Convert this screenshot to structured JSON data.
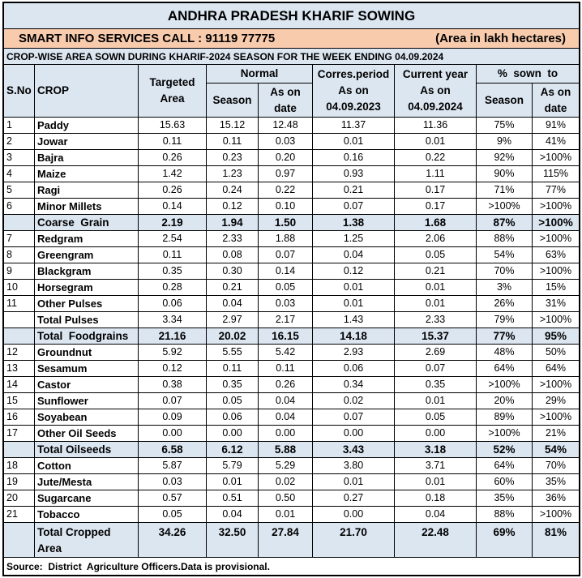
{
  "title": "ANDHRA PRADESH KHARIF SOWING",
  "contact": "SMART INFO SERVICES CALL : 91119 77775",
  "unit_note": "(Area in lakh hectares)",
  "subtitle": "CROP-WISE AREA SOWN DURING KHARIF-2024 SEASON FOR THE WEEK ENDING 04.09.2024",
  "headers": {
    "sno": "S.No",
    "crop": "CROP",
    "targeted": [
      "Targeted",
      "Area"
    ],
    "normal": "Normal",
    "normal_season": "Season",
    "normal_date": [
      "As on",
      "date"
    ],
    "corres": [
      "Corres.period",
      "As on",
      "04.09.2023"
    ],
    "current": [
      "Current year",
      "As on",
      "04.09.2024"
    ],
    "pct": "%  sown  to",
    "pct_season": "Season",
    "pct_date": [
      "As on",
      "date"
    ]
  },
  "rows": [
    {
      "sno": "1",
      "crop": "Paddy",
      "targeted": "15.63",
      "normal_season": "15.12",
      "normal_date": "12.48",
      "corres": "11.37",
      "current": "11.36",
      "pct_season": "75%",
      "pct_date": "91%"
    },
    {
      "sno": "2",
      "crop": "Jowar",
      "targeted": "0.11",
      "normal_season": "0.11",
      "normal_date": "0.03",
      "corres": "0.01",
      "current": "0.01",
      "pct_season": "9%",
      "pct_date": "41%"
    },
    {
      "sno": "3",
      "crop": "Bajra",
      "targeted": "0.26",
      "normal_season": "0.23",
      "normal_date": "0.20",
      "corres": "0.16",
      "current": "0.22",
      "pct_season": "92%",
      "pct_date": ">100%"
    },
    {
      "sno": "4",
      "crop": "Maize",
      "targeted": "1.42",
      "normal_season": "1.23",
      "normal_date": "0.97",
      "corres": "0.93",
      "current": "1.11",
      "pct_season": "90%",
      "pct_date": "115%"
    },
    {
      "sno": "5",
      "crop": "Ragi",
      "targeted": "0.26",
      "normal_season": "0.24",
      "normal_date": "0.22",
      "corres": "0.21",
      "current": "0.17",
      "pct_season": "71%",
      "pct_date": "77%"
    },
    {
      "sno": "6",
      "crop": "Minor Millets",
      "targeted": "0.14",
      "normal_season": "0.12",
      "normal_date": "0.10",
      "corres": "0.07",
      "current": "0.17",
      "pct_season": ">100%",
      "pct_date": ">100%"
    },
    {
      "crop": "Coarse  Grain",
      "targeted": "2.19",
      "normal_season": "1.94",
      "normal_date": "1.50",
      "corres": "1.38",
      "current": "1.68",
      "pct_season": "87%",
      "pct_date": ">100%",
      "highlight": true
    },
    {
      "sno": "7",
      "crop": "Redgram",
      "targeted": "2.54",
      "normal_season": "2.33",
      "normal_date": "1.88",
      "corres": "1.25",
      "current": "2.06",
      "pct_season": "88%",
      "pct_date": ">100%"
    },
    {
      "sno": "8",
      "crop": "Greengram",
      "targeted": "0.11",
      "normal_season": "0.08",
      "normal_date": "0.07",
      "corres": "0.04",
      "current": "0.05",
      "pct_season": "54%",
      "pct_date": "63%"
    },
    {
      "sno": "9",
      "crop": "Blackgram",
      "targeted": "0.35",
      "normal_season": "0.30",
      "normal_date": "0.14",
      "corres": "0.12",
      "current": "0.21",
      "pct_season": "70%",
      "pct_date": ">100%"
    },
    {
      "sno": "10",
      "crop": "Horsegram",
      "targeted": "0.28",
      "normal_season": "0.21",
      "normal_date": "0.05",
      "corres": "0.01",
      "current": "0.01",
      "pct_season": "3%",
      "pct_date": "15%"
    },
    {
      "sno": "11",
      "crop": "Other Pulses",
      "targeted": "0.06",
      "normal_season": "0.04",
      "normal_date": "0.03",
      "corres": "0.01",
      "current": "0.01",
      "pct_season": "26%",
      "pct_date": "31%"
    },
    {
      "crop": "Total Pulses",
      "targeted": "3.34",
      "normal_season": "2.97",
      "normal_date": "2.17",
      "corres": "1.43",
      "current": "2.33",
      "pct_season": "79%",
      "pct_date": ">100%"
    },
    {
      "crop": "Total  Foodgrains",
      "targeted": "21.16",
      "normal_season": "20.02",
      "normal_date": "16.15",
      "corres": "14.18",
      "current": "15.37",
      "pct_season": "77%",
      "pct_date": "95%",
      "highlight": true
    },
    {
      "sno": "12",
      "crop": "Groundnut",
      "targeted": "5.92",
      "normal_season": "5.55",
      "normal_date": "5.42",
      "corres": "2.93",
      "current": "2.69",
      "pct_season": "48%",
      "pct_date": "50%"
    },
    {
      "sno": "13",
      "crop": "Sesamum",
      "targeted": "0.12",
      "normal_season": "0.11",
      "normal_date": "0.11",
      "corres": "0.06",
      "current": "0.07",
      "pct_season": "64%",
      "pct_date": "64%"
    },
    {
      "sno": "14",
      "crop": "Castor",
      "targeted": "0.38",
      "normal_season": "0.35",
      "normal_date": "0.26",
      "corres": "0.34",
      "current": "0.35",
      "pct_season": ">100%",
      "pct_date": ">100%"
    },
    {
      "sno": "15",
      "crop": "Sunflower",
      "targeted": "0.07",
      "normal_season": "0.05",
      "normal_date": "0.04",
      "corres": "0.02",
      "current": "0.01",
      "pct_season": "20%",
      "pct_date": "29%"
    },
    {
      "sno": "16",
      "crop": "Soyabean",
      "targeted": "0.09",
      "normal_season": "0.06",
      "normal_date": "0.04",
      "corres": "0.07",
      "current": "0.05",
      "pct_season": "89%",
      "pct_date": ">100%"
    },
    {
      "sno": "17",
      "crop": "Other Oil Seeds",
      "targeted": "0.00",
      "normal_season": "0.00",
      "normal_date": "0.00",
      "corres": "0.00",
      "current": "0.00",
      "pct_season": ">100%",
      "pct_date": "21%"
    },
    {
      "crop": "Total Oilseeds",
      "targeted": "6.58",
      "normal_season": "6.12",
      "normal_date": "5.88",
      "corres": "3.43",
      "current": "3.18",
      "pct_season": "52%",
      "pct_date": "54%",
      "highlight": true
    },
    {
      "sno": "18",
      "crop": "Cotton",
      "targeted": "5.87",
      "normal_season": "5.79",
      "normal_date": "5.29",
      "corres": "3.80",
      "current": "3.71",
      "pct_season": "64%",
      "pct_date": "70%"
    },
    {
      "sno": "19",
      "crop": "Jute/Mesta",
      "targeted": "0.03",
      "normal_season": "0.01",
      "normal_date": "0.02",
      "corres": "0.01",
      "current": "0.01",
      "pct_season": "60%",
      "pct_date": "35%"
    },
    {
      "sno": "20",
      "crop": "Sugarcane",
      "targeted": "0.57",
      "normal_season": "0.51",
      "normal_date": "0.50",
      "corres": "0.27",
      "current": "0.18",
      "pct_season": "35%",
      "pct_date": "36%"
    },
    {
      "sno": "21",
      "crop": "Tobacco",
      "targeted": "0.05",
      "normal_season": "0.04",
      "normal_date": "0.01",
      "corres": "0.00",
      "current": "0.04",
      "pct_season": "88%",
      "pct_date": ">100%"
    }
  ],
  "total_cropped": {
    "crop": "Total Cropped Area",
    "targeted": "34.26",
    "normal_season": "32.50",
    "normal_date": "27.84",
    "corres": "21.70",
    "current": "22.48",
    "pct_season": "69%",
    "pct_date": "81%"
  },
  "source": "Source:  District  Agriculture Officers.Data is provisional.",
  "colors": {
    "border": "#000000",
    "header_bg": "#dce6f1",
    "contact_bg": "#f8cbad",
    "highlight_bg": "#dce6f1",
    "cell_bg": "#ffffff",
    "text": "#000000"
  }
}
